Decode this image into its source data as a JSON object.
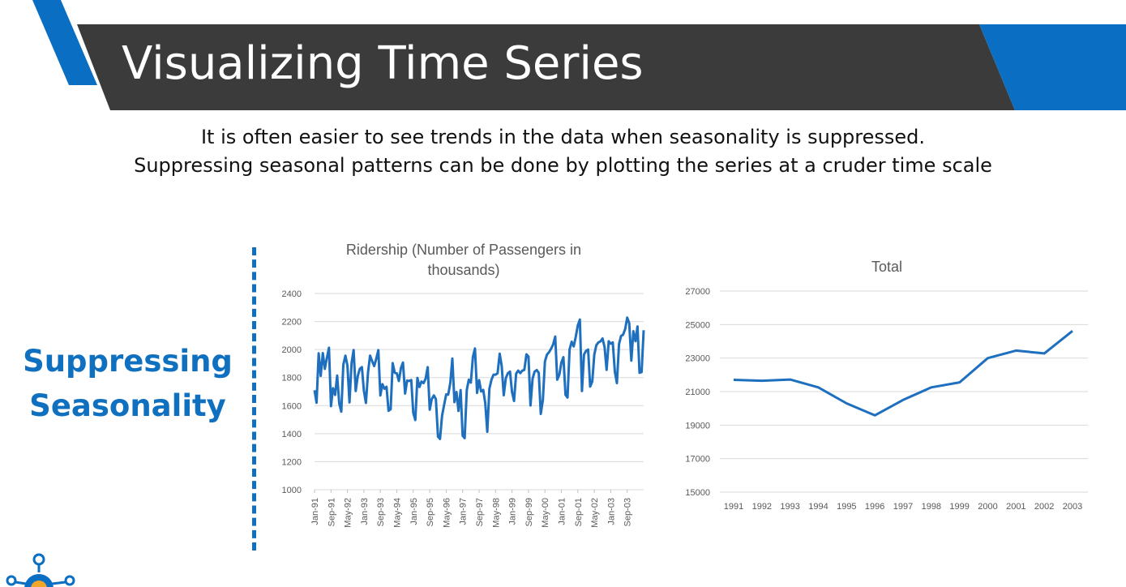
{
  "slide": {
    "title": "Visualizing Time Series",
    "subtitle_line1": "It is often easier to see trends in the data when seasonality is suppressed.",
    "subtitle_line2": "Suppressing seasonal patterns can be done by plotting the series at a cruder time scale",
    "side_label_line1": "Suppressing",
    "side_label_line2": "Seasonality",
    "colors": {
      "header_dark": "#3b3b3b",
      "accent_blue": "#0a6fc3",
      "label_blue": "#1070c0",
      "line_blue": "#1f6fbf"
    }
  },
  "chart_data": [
    {
      "type": "line",
      "title": "Ridership (Number of Passengers in thousands)",
      "title_line1": "Ridership (Number of Passengers in",
      "title_line2": "thousands)",
      "ylim": [
        1000,
        2400
      ],
      "yticks": [
        1000,
        1200,
        1400,
        1600,
        1800,
        2000,
        2200,
        2400
      ],
      "xtick_labels": [
        "Jan-91",
        "Sep-91",
        "May-92",
        "Jan-93",
        "Sep-93",
        "May-94",
        "Jan-95",
        "Sep-95",
        "May-96",
        "Jan-97",
        "Sep-97",
        "May-98",
        "Jan-99",
        "Sep-99",
        "May-00",
        "Jan-01",
        "Sep-01",
        "May-02",
        "Jan-03",
        "Sep-03"
      ],
      "x_start": "Jan-91",
      "x_end": "Mar-04",
      "series": [
        {
          "values": [
            1709,
            1621,
            1973,
            1812,
            1975,
            1862,
            1940,
            2013,
            1596,
            1725,
            1676,
            1814,
            1615,
            1557,
            1891,
            1956,
            1885,
            1623,
            1903,
            1997,
            1704,
            1810,
            1862,
            1875,
            1705,
            1619,
            1837,
            1957,
            1917,
            1882,
            1933,
            1996,
            1673,
            1753,
            1720,
            1734,
            1563,
            1574,
            1903,
            1834,
            1831,
            1776,
            1868,
            1907,
            1686,
            1779,
            1776,
            1783,
            1548,
            1497,
            1798,
            1733,
            1772,
            1761,
            1792,
            1875,
            1571,
            1647,
            1673,
            1646,
            1379,
            1362,
            1527,
            1607,
            1680,
            1678,
            1763,
            1936,
            1625,
            1697,
            1562,
            1711,
            1385,
            1368,
            1711,
            1785,
            1764,
            1948,
            2008,
            1691,
            1782,
            1701,
            1712,
            1617,
            1413,
            1721,
            1784,
            1821,
            1821,
            1831,
            1970,
            1882,
            1674,
            1797,
            1831,
            1843,
            1698,
            1633,
            1828,
            1850,
            1832,
            1849,
            1855,
            1966,
            1950,
            1601,
            1793,
            1843,
            1854,
            1833,
            1541,
            1643,
            1915,
            1964,
            1981,
            2006,
            2038,
            2093,
            1785,
            1821,
            1907,
            1946,
            1677,
            1658,
            2001,
            2056,
            2022,
            2092,
            2173,
            2214,
            1704,
            1965,
            1990,
            2000,
            1736,
            1772,
            1964,
            2031,
            2051,
            2058,
            2079,
            2017,
            1855,
            2059,
            2042,
            2051,
            1840,
            1760,
            2039,
            2097,
            2106,
            2146,
            2228,
            2188,
            1921,
            2131,
            2060,
            2165,
            1834,
            1840,
            2138
          ]
        }
      ]
    },
    {
      "type": "line",
      "title": "Total",
      "ylim": [
        15000,
        27000
      ],
      "yticks": [
        15000,
        17000,
        19000,
        21000,
        23000,
        25000,
        27000
      ],
      "categories": [
        "1991",
        "1992",
        "1993",
        "1994",
        "1995",
        "1996",
        "1997",
        "1998",
        "1999",
        "2000",
        "2001",
        "2002",
        "2003"
      ],
      "series": [
        {
          "values": [
            21700,
            21650,
            21720,
            21250,
            20300,
            19580,
            20500,
            21250,
            21550,
            23000,
            23450,
            23280,
            24620
          ]
        }
      ]
    }
  ]
}
